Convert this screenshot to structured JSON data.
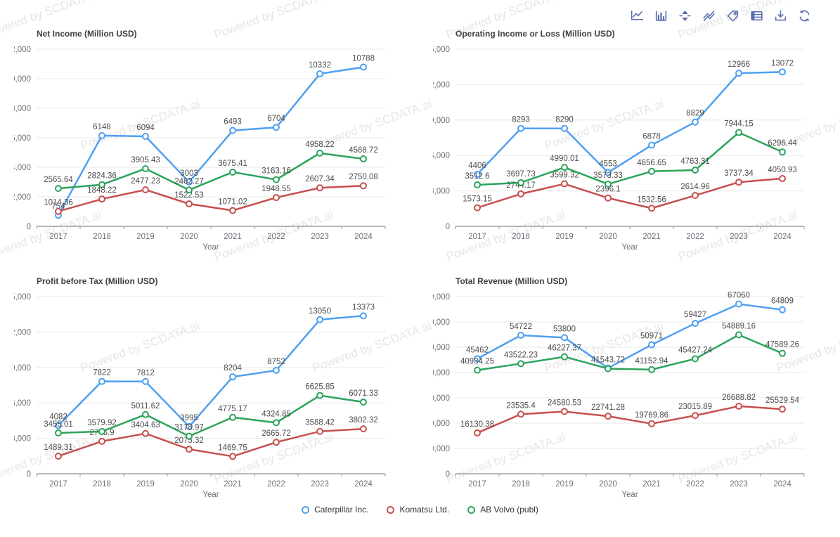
{
  "watermark": {
    "text": "Powered by SCDATA.ai"
  },
  "toolbar": {
    "icons": [
      {
        "name": "line-chart-icon"
      },
      {
        "name": "bar-chart-icon"
      },
      {
        "name": "stack-icon"
      },
      {
        "name": "tiled-icon"
      },
      {
        "name": "tag-icon"
      },
      {
        "name": "data-view-icon"
      },
      {
        "name": "download-icon"
      },
      {
        "name": "refresh-icon"
      }
    ],
    "icon_color": "#5B6CB0"
  },
  "legend": {
    "items": [
      {
        "label": "Caterpillar Inc.",
        "color": "#4FA0F2"
      },
      {
        "label": "Komatsu Ltd.",
        "color": "#C6504E"
      },
      {
        "label": "AB Volvo (publ)",
        "color": "#2BA45B"
      }
    ]
  },
  "axis": {
    "xlabel": "Year",
    "grid_color": "#E8E8E8",
    "axis_line_color": "#6E7079",
    "tick_color": "#999999"
  },
  "chart_data": [
    {
      "type": "line",
      "title": "Net Income (Million USD)",
      "xlabel": "Year",
      "categories": [
        "2017",
        "2018",
        "2019",
        "2020",
        "2021",
        "2022",
        "2023",
        "2024"
      ],
      "ylim": [
        0,
        12000
      ],
      "ytick_step": 2000,
      "grid": true,
      "series": [
        {
          "name": "Caterpillar Inc.",
          "color": "#4FA0F2",
          "values": [
            754,
            6148,
            6094,
            3003,
            6493,
            6704,
            10332,
            10788
          ],
          "labels": [
            "754",
            "6148",
            "6094",
            "3003",
            "6493",
            "6704",
            "10332",
            "10788"
          ]
        },
        {
          "name": "Komatsu Ltd.",
          "color": "#C6504E",
          "values": [
            1014.36,
            1848.22,
            2477.23,
            1522.53,
            1071.02,
            1948.55,
            2607.34,
            2750.08
          ],
          "labels": [
            "1014.36",
            "1848.22",
            "2477.23",
            "1522.53",
            "1071.02",
            "1948.55",
            "2607.34",
            "2750.08"
          ]
        },
        {
          "name": "AB Volvo (publ)",
          "color": "#2BA45B",
          "values": [
            2565.64,
            2824.36,
            3905.43,
            2462.27,
            3675.41,
            3163.16,
            4958.22,
            4568.72
          ],
          "labels": [
            "2565.64",
            "2824.36",
            "3905.43",
            "2462.27",
            "3675.41",
            "3163.16",
            "4958.22",
            "4568.72"
          ]
        }
      ]
    },
    {
      "type": "line",
      "title": "Operating Income or Loss (Million USD)",
      "xlabel": "Year",
      "categories": [
        "2017",
        "2018",
        "2019",
        "2020",
        "2021",
        "2022",
        "2023",
        "2024"
      ],
      "ylim": [
        0,
        15000
      ],
      "ytick_step": 3000,
      "grid": true,
      "series": [
        {
          "name": "Caterpillar Inc.",
          "color": "#4FA0F2",
          "values": [
            4406,
            8293,
            8290,
            4553,
            6878,
            8829,
            12966,
            13072
          ],
          "labels": [
            "4406",
            "8293",
            "8290",
            "4553",
            "6878",
            "8829",
            "12966",
            "13072"
          ]
        },
        {
          "name": "Komatsu Ltd.",
          "color": "#C6504E",
          "values": [
            1573.15,
            2744.17,
            3599.32,
            2396.1,
            1532.56,
            2614.96,
            3737.34,
            4050.93
          ],
          "labels": [
            "1573.15",
            "2744.17",
            "3599.32",
            "2396.1",
            "1532.56",
            "2614.96",
            "3737.34",
            "4050.93"
          ]
        },
        {
          "name": "AB Volvo (publ)",
          "color": "#2BA45B",
          "values": [
            3512.6,
            3697.73,
            4990.01,
            3573.33,
            4656.65,
            4763.31,
            7944.15,
            6296.44
          ],
          "labels": [
            "3512.6",
            "3697.73",
            "4990.01",
            "3573.33",
            "4656.65",
            "4763.31",
            "7944.15",
            "6296.44"
          ]
        }
      ]
    },
    {
      "type": "line",
      "title": "Profit before Tax (Million USD)",
      "xlabel": "Year",
      "categories": [
        "2017",
        "2018",
        "2019",
        "2020",
        "2021",
        "2022",
        "2023",
        "2024"
      ],
      "ylim": [
        0,
        15000
      ],
      "ytick_step": 3000,
      "grid": true,
      "series": [
        {
          "name": "Caterpillar Inc.",
          "color": "#4FA0F2",
          "values": [
            4082,
            7822,
            7812,
            3995,
            8204,
            8752,
            13050,
            13373
          ],
          "labels": [
            "4082",
            "7822",
            "7812",
            "3995",
            "8204",
            "8752",
            "13050",
            "13373"
          ]
        },
        {
          "name": "Komatsu Ltd.",
          "color": "#C6504E",
          "values": [
            1489.31,
            2745.9,
            3404.63,
            2075.32,
            1469.75,
            2665.72,
            3588.42,
            3802.32
          ],
          "labels": [
            "1489.31",
            "2745.9",
            "3404.63",
            "2075.32",
            "1469.75",
            "2665.72",
            "3588.42",
            "3802.32"
          ]
        },
        {
          "name": "AB Volvo (publ)",
          "color": "#2BA45B",
          "values": [
            3455.01,
            3579.92,
            5011.62,
            3178.97,
            4775.17,
            4324.85,
            6625.85,
            6071.33
          ],
          "labels": [
            "3455.01",
            "3579.92",
            "5011.62",
            "3178.97",
            "4775.17",
            "4324.85",
            "6625.85",
            "6071.33"
          ]
        }
      ]
    },
    {
      "type": "line",
      "title": "Total Revenue (Million USD)",
      "xlabel": "Year",
      "categories": [
        "2017",
        "2018",
        "2019",
        "2020",
        "2021",
        "2022",
        "2023",
        "2024"
      ],
      "ylim": [
        0,
        70000
      ],
      "ytick_step": 10000,
      "grid": true,
      "series": [
        {
          "name": "Caterpillar Inc.",
          "color": "#4FA0F2",
          "values": [
            45462,
            54722,
            53800,
            41748,
            50971,
            59427,
            67060,
            64809
          ],
          "labels": [
            "45462",
            "54722",
            "53800",
            "",
            "50971",
            "59427",
            "67060",
            "64809"
          ]
        },
        {
          "name": "Komatsu Ltd.",
          "color": "#C6504E",
          "values": [
            16130.38,
            23535.4,
            24580.53,
            22741.28,
            19769.86,
            23015.89,
            26688.82,
            25529.54
          ],
          "labels": [
            "16130.38",
            "23535.4",
            "24580.53",
            "22741.28",
            "19769.86",
            "23015.89",
            "26688.82",
            "25529.54"
          ]
        },
        {
          "name": "AB Volvo (publ)",
          "color": "#2BA45B",
          "values": [
            40934.25,
            43522.23,
            46227.37,
            41543.72,
            41152.94,
            45427.24,
            54889.16,
            47589.26
          ],
          "labels": [
            "40934.25",
            "43522.23",
            "46227.37",
            "41543.72",
            "41152.94",
            "45427.24",
            "54889.16",
            "47589.26"
          ]
        }
      ]
    }
  ]
}
